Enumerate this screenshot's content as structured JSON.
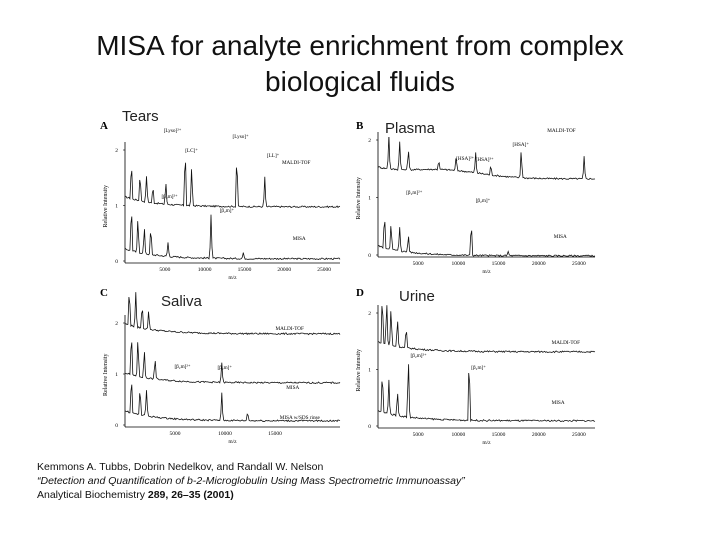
{
  "title_line1": "MISA for analyte enrichment from complex",
  "title_line2": "biological fluids",
  "panels": [
    {
      "letter": "A",
      "caption": "Tears",
      "ylabel": "Relative Intensity",
      "xlabel": "m/z",
      "xticks": [
        "5000",
        "10000",
        "15000",
        "20000",
        "25000"
      ],
      "yticks": [
        "2",
        "1",
        "0"
      ],
      "traces": [
        "MALDI-TOF",
        "MISA"
      ],
      "peak_labels": [
        "[Lyso]²⁺",
        "[Lyso]⁺",
        "[LC]⁺",
        "[LL]⁺",
        "[β₂m]²⁺",
        "[β₂m]⁺"
      ]
    },
    {
      "letter": "B",
      "caption": "Plasma",
      "ylabel": "Relative Intensity",
      "xlabel": "m/z",
      "xticks": [
        "5000",
        "10000",
        "15000",
        "20000",
        "25000"
      ],
      "yticks": [
        "2",
        "1",
        "0"
      ],
      "traces": [
        "MALDI-TOF",
        "MISA"
      ],
      "peak_labels": [
        "[HSA]²⁺",
        "[HSA]³⁺",
        "[HSA]⁺",
        "[β₂m]²⁺",
        "[β₂m]⁺"
      ]
    },
    {
      "letter": "C",
      "caption": "Saliva",
      "ylabel": "Relative Intensity",
      "xlabel": "m/z",
      "xticks": [
        "5000",
        "10000",
        "15000"
      ],
      "yticks": [
        "2",
        "1",
        "0"
      ],
      "traces": [
        "MALDI-TOF",
        "MISA",
        "MISA w/SDS rinse"
      ],
      "peak_labels": [
        "[β₂m]²⁺",
        "[β₂m]⁺"
      ]
    },
    {
      "letter": "D",
      "caption": "Urine",
      "ylabel": "Relative Intensity",
      "xlabel": "m/z",
      "xticks": [
        "5000",
        "10000",
        "15000",
        "20000",
        "25000"
      ],
      "yticks": [
        "2",
        "1",
        "0"
      ],
      "traces": [
        "MALDI-TOF",
        "MISA"
      ],
      "peak_labels": [
        "[β₂m]²⁺",
        "[β₂m]⁺"
      ]
    }
  ],
  "citation": {
    "authors": "Kemmons A. Tubbs, Dobrin Nedelkov, and Randall W. Nelson",
    "article_title": "“Detection and Quantification of b-2-Microglobulin Using Mass Spectrometric Immunoassay”",
    "journal": "Analytical Biochemistry",
    "volume_pages": "289, 26–35 (2001)"
  }
}
